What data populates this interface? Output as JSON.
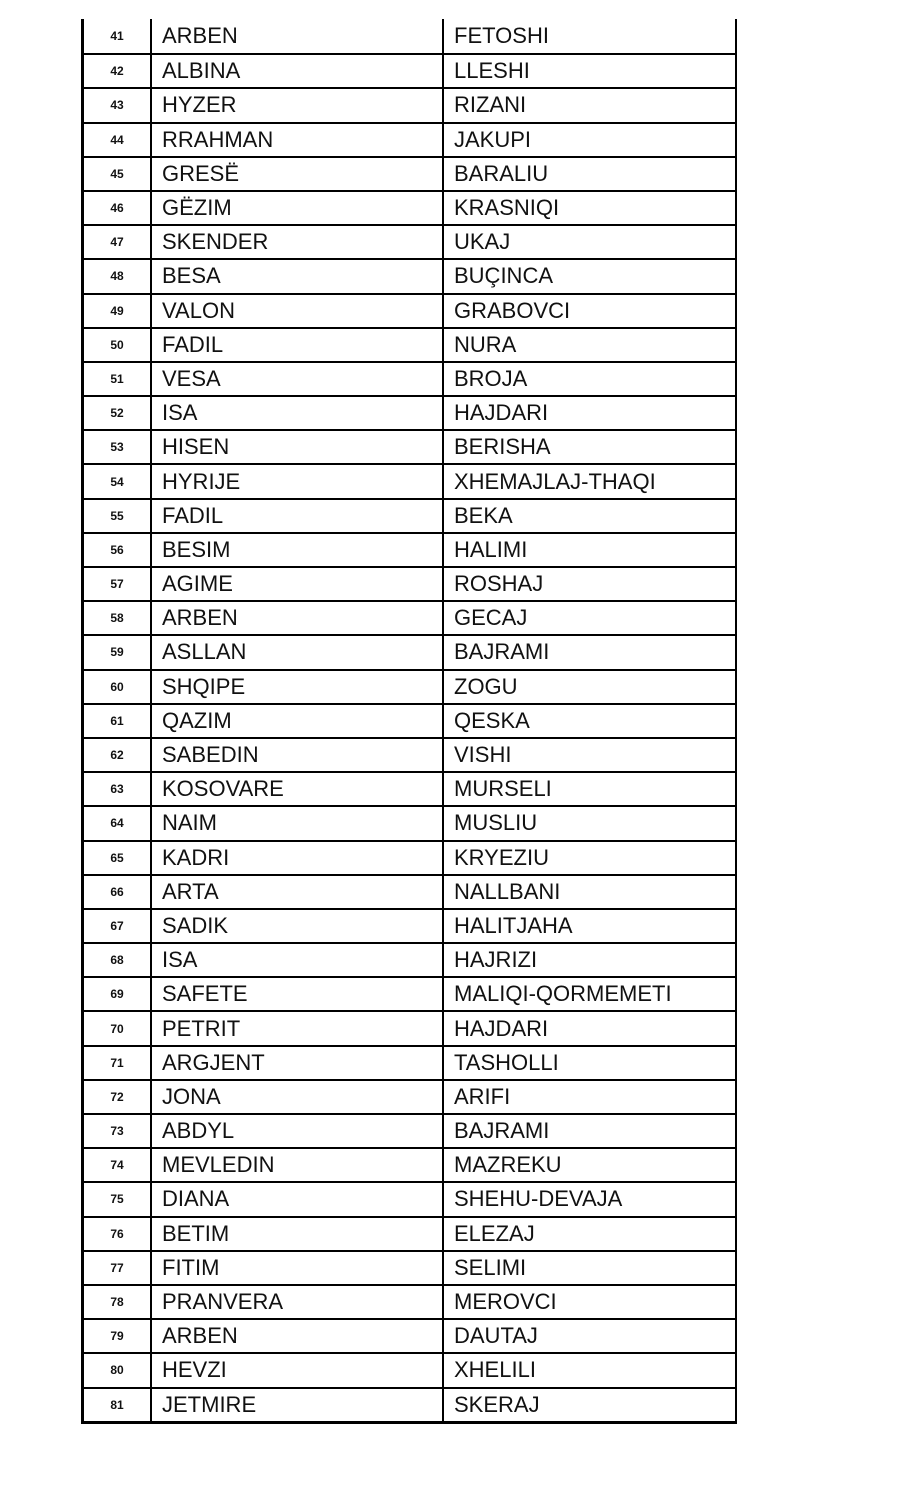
{
  "rows": [
    [
      "41",
      "ARBEN",
      "FETOSHI"
    ],
    [
      "42",
      "ALBINA",
      "LLESHI"
    ],
    [
      "43",
      "HYZER",
      "RIZANI"
    ],
    [
      "44",
      "RRAHMAN",
      "JAKUPI"
    ],
    [
      "45",
      "GRESË",
      "BARALIU"
    ],
    [
      "46",
      "GËZIM",
      "KRASNIQI"
    ],
    [
      "47",
      "SKENDER",
      "UKAJ"
    ],
    [
      "48",
      "BESA",
      "BUÇINCA"
    ],
    [
      "49",
      "VALON",
      "GRABOVCI"
    ],
    [
      "50",
      "FADIL",
      "NURA"
    ],
    [
      "51",
      "VESA",
      "BROJA"
    ],
    [
      "52",
      "ISA",
      "HAJDARI"
    ],
    [
      "53",
      "HISEN",
      "BERISHA"
    ],
    [
      "54",
      "HYRIJE",
      "XHEMAJLAJ-THAQI"
    ],
    [
      "55",
      "FADIL",
      "BEKA"
    ],
    [
      "56",
      "BESIM",
      "HALIMI"
    ],
    [
      "57",
      "AGIME",
      " ROSHAJ"
    ],
    [
      "58",
      "ARBEN",
      "GECAJ"
    ],
    [
      "59",
      "ASLLAN",
      "BAJRAMI"
    ],
    [
      "60",
      "SHQIPE",
      "ZOGU"
    ],
    [
      "61",
      "QAZIM",
      "QESKA"
    ],
    [
      "62",
      "SABEDIN",
      "VISHI"
    ],
    [
      "63",
      "KOSOVARE",
      "MURSELI"
    ],
    [
      "64",
      "NAIM",
      "MUSLIU"
    ],
    [
      "65",
      "KADRI",
      "KRYEZIU"
    ],
    [
      "66",
      "ARTA",
      "NALLBANI"
    ],
    [
      "67",
      "SADIK",
      "HALITJAHA"
    ],
    [
      "68",
      "ISA",
      "HAJRIZI"
    ],
    [
      "69",
      "SAFETE",
      "MALIQI-QORMEMETI"
    ],
    [
      "70",
      "PETRIT",
      "HAJDARI"
    ],
    [
      "71",
      "ARGJENT",
      "TASHOLLI"
    ],
    [
      "72",
      "JONA",
      "ARIFI"
    ],
    [
      "73",
      "ABDYL",
      "BAJRAMI"
    ],
    [
      "74",
      "MEVLEDIN",
      "MAZREKU"
    ],
    [
      "75",
      "DIANA",
      "SHEHU-DEVAJA"
    ],
    [
      "76",
      "BETIM",
      "ELEZAJ"
    ],
    [
      "77",
      "FITIM",
      "SELIMI"
    ],
    [
      "78",
      "PRANVERA",
      "MEROVCI"
    ],
    [
      "79",
      "ARBEN",
      "DAUTAJ"
    ],
    [
      "80",
      "HEVZI",
      "XHELILI"
    ],
    [
      "81",
      "JETMIRE",
      "SKERAJ"
    ]
  ]
}
